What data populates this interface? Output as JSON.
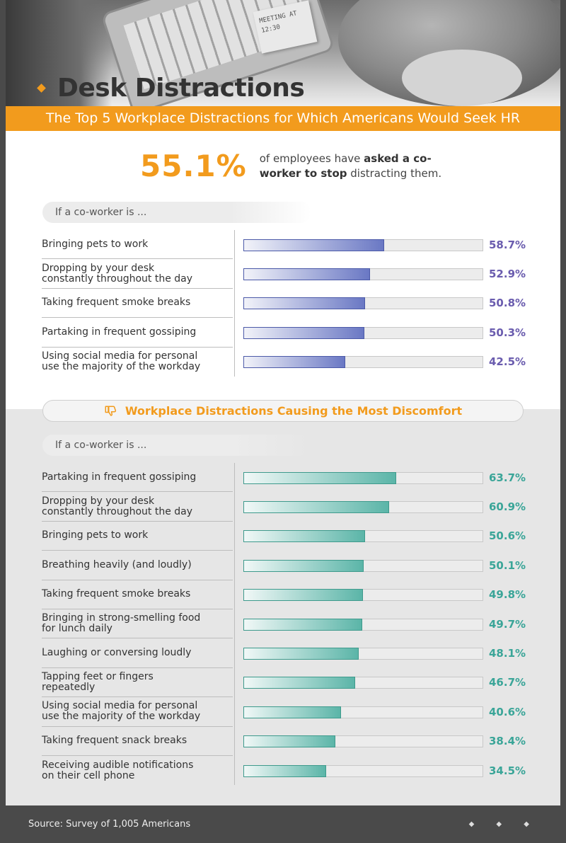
{
  "hero": {
    "title": "Desk Distractions",
    "note_text": "MEETING AT 12:30"
  },
  "banner": "The Top 5 Workplace Distractions for Which Americans Would Seek HR",
  "stat": {
    "value": "55.1%",
    "text_before": "of employees have ",
    "text_bold": "asked a co-worker to stop",
    "text_after": " distracting them."
  },
  "section1": {
    "pill_label": "If a co-worker is ..."
  },
  "section2": {
    "header": "Workplace Distractions Causing the Most Discomfort",
    "header_icon": "thumbs-down-icon",
    "pill_label": "If a co-worker is ..."
  },
  "footer": {
    "source": "Source: Survey of 1,005 Americans",
    "dots": "◆ ◆ ◆"
  },
  "colors": {
    "accent": "#f29b1d",
    "purple": "#6a5cae",
    "teal": "#3aa598"
  },
  "chart_data": [
    {
      "type": "bar",
      "orientation": "horizontal",
      "title": "The Top 5 Workplace Distractions for Which Americans Would Seek HR",
      "categories": [
        "Bringing pets to work",
        "Dropping by your desk constantly throughout the day",
        "Taking frequent smoke breaks",
        "Partaking in frequent gossiping",
        "Using social media for personal use the majority of the workday"
      ],
      "values": [
        58.7,
        52.9,
        50.8,
        50.3,
        42.5
      ],
      "labels": [
        "58.7%",
        "52.9%",
        "50.8%",
        "50.3%",
        "42.5%"
      ],
      "xlim": [
        0,
        100
      ],
      "unit": "%"
    },
    {
      "type": "bar",
      "orientation": "horizontal",
      "title": "Workplace Distractions Causing the Most Discomfort",
      "categories": [
        "Partaking in frequent gossiping",
        "Dropping by your desk constantly throughout the day",
        "Bringing pets to work",
        "Breathing heavily (and loudly)",
        "Taking frequent smoke breaks",
        "Bringing in strong-smelling food for lunch daily",
        "Laughing or conversing loudly",
        "Tapping feet or fingers repeatedly",
        "Using social media for personal use the majority of the workday",
        "Taking frequent snack breaks",
        "Receiving audible notifications on their cell phone"
      ],
      "values": [
        63.7,
        60.9,
        50.6,
        50.1,
        49.8,
        49.7,
        48.1,
        46.7,
        40.6,
        38.4,
        34.5
      ],
      "labels": [
        "63.7%",
        "60.9%",
        "50.6%",
        "50.1%",
        "49.8%",
        "49.7%",
        "48.1%",
        "46.7%",
        "40.6%",
        "38.4%",
        "34.5%"
      ],
      "xlim": [
        0,
        100
      ],
      "unit": "%"
    }
  ]
}
